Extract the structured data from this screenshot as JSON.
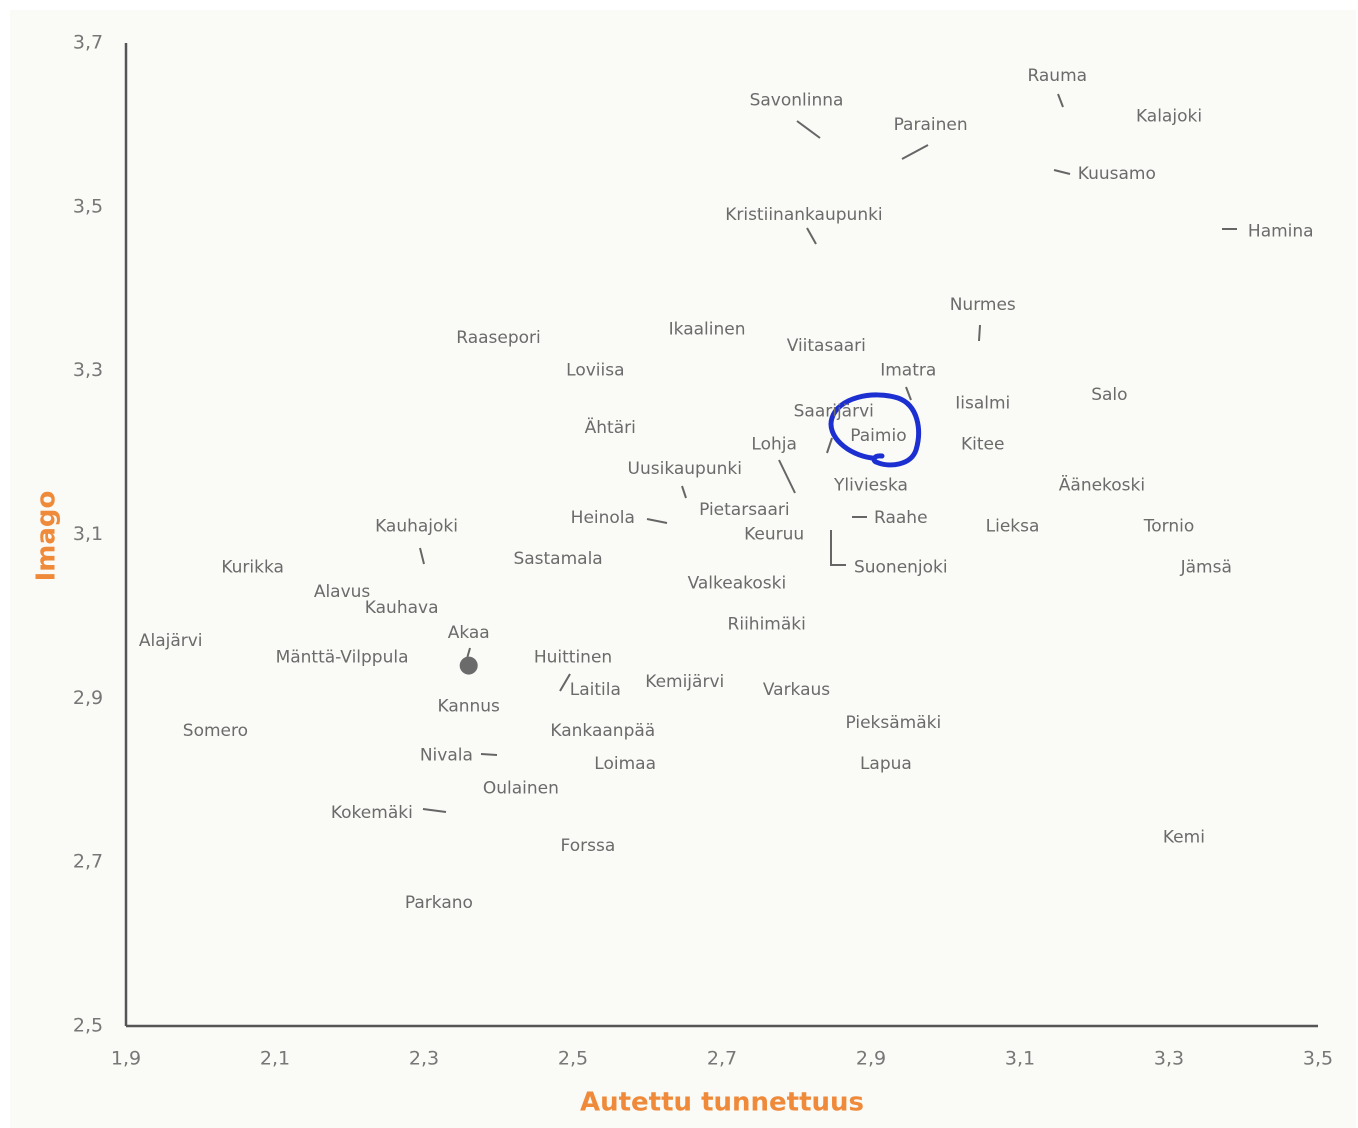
{
  "chart_data": {
    "type": "scatter",
    "xlabel": "Autettu tunnettuus",
    "ylabel": "Imago",
    "xlim": [
      1.9,
      3.5
    ],
    "xticks": [
      {
        "value": 1.9,
        "label": "1,9"
      },
      {
        "value": 2.1,
        "label": "2,1"
      },
      {
        "value": 2.3,
        "label": "2,3"
      },
      {
        "value": 2.5,
        "label": "2,5"
      },
      {
        "value": 2.7,
        "label": "2,7"
      },
      {
        "value": 2.9,
        "label": "2,9"
      },
      {
        "value": 3.1,
        "label": "3,1"
      },
      {
        "value": 3.3,
        "label": "3,3"
      },
      {
        "value": 3.5,
        "label": "3,5"
      }
    ],
    "ylim": [
      2.5,
      3.7
    ],
    "yticks": [
      {
        "value": 2.5,
        "label": "2,5"
      },
      {
        "value": 2.7,
        "label": "2,7"
      },
      {
        "value": 2.9,
        "label": "2,9"
      },
      {
        "value": 3.1,
        "label": "3,1"
      },
      {
        "value": 3.3,
        "label": "3,3"
      },
      {
        "value": 3.5,
        "label": "3,5"
      },
      {
        "value": 3.7,
        "label": "3,7"
      }
    ],
    "labels": [
      "Rauma",
      "Savonlinna",
      "Kalajoki",
      "Parainen",
      "Kuusamo",
      "Kristiinankaupunki",
      "Hamina",
      "Nurmes",
      "Raasepori",
      "Ikaalinen",
      "Viitasaari",
      "Loviisa",
      "Imatra",
      "Iisalmi",
      "Salo",
      "Saarijärvi",
      "Ähtäri",
      "Paimio",
      "Lohja",
      "Kitee",
      "Uusikaupunki",
      "Ylivieska",
      "Äänekoski",
      "Pietarsaari",
      "Raahe",
      "Heinola",
      "Tornio",
      "Lieksa",
      "Kauhajoki",
      "Keuruu",
      "Sastamala",
      "Suonenjoki",
      "Kurikka",
      "Jämsä",
      "Valkeakoski",
      "Alavus",
      "Kauhava",
      "Riihimäki",
      "Akaa",
      "Alajärvi",
      "Mänttä-Vilppula",
      "Huittinen",
      "Kemijärvi",
      "Laitila",
      "Varkaus",
      "Kannus",
      "Pieksämäki",
      "Kankaanpää",
      "Somero",
      "Nivala",
      "Loimaa",
      "Lapua",
      "Oulainen",
      "Kokemäki",
      "Kemi",
      "Forssa",
      "Parkano"
    ],
    "x": [
      3.15,
      2.8,
      3.3,
      2.98,
      3.23,
      2.81,
      3.45,
      3.05,
      2.4,
      2.68,
      2.84,
      2.53,
      2.95,
      3.05,
      3.22,
      2.85,
      2.55,
      2.91,
      2.77,
      3.05,
      2.65,
      2.9,
      3.21,
      2.73,
      2.94,
      2.54,
      3.3,
      3.09,
      2.29,
      2.77,
      2.48,
      2.94,
      2.07,
      3.35,
      2.72,
      2.19,
      2.27,
      2.76,
      2.36,
      1.96,
      2.19,
      2.5,
      2.65,
      2.53,
      2.8,
      2.36,
      2.93,
      2.54,
      2.02,
      2.33,
      2.57,
      2.92,
      2.43,
      2.23,
      3.32,
      2.52,
      2.32
    ],
    "values": [
      3.66,
      3.63,
      3.61,
      3.6,
      3.54,
      3.49,
      3.47,
      3.38,
      3.34,
      3.35,
      3.33,
      3.3,
      3.3,
      3.26,
      3.27,
      3.25,
      3.23,
      3.22,
      3.21,
      3.21,
      3.18,
      3.16,
      3.16,
      3.13,
      3.12,
      3.12,
      3.11,
      3.11,
      3.11,
      3.1,
      3.07,
      3.06,
      3.06,
      3.06,
      3.04,
      3.03,
      3.01,
      2.99,
      2.98,
      2.97,
      2.95,
      2.95,
      2.92,
      2.91,
      2.91,
      2.89,
      2.87,
      2.86,
      2.86,
      2.83,
      2.82,
      2.82,
      2.79,
      2.76,
      2.73,
      2.72,
      2.65
    ],
    "highlight_point": {
      "x": 2.36,
      "y": 2.94,
      "color": "#6b6b6b"
    }
  }
}
